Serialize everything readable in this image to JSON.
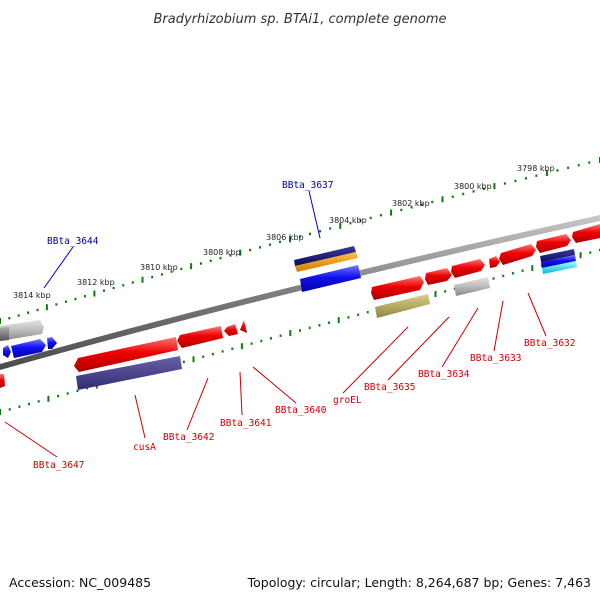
{
  "title": "Bradyrhizobium sp. BTAi1, complete genome",
  "footer": {
    "accession": "Accession: NC_009485",
    "topology": "Topology: circular; Length: 8,264,687 bp; Genes: 7,463"
  },
  "scale": {
    "tick_labels": [
      "3798 kbp",
      "3800 kbp",
      "3802 kbp",
      "3804 kbp",
      "3806 kbp",
      "3808 kbp",
      "3810 kbp",
      "3812 kbp",
      "3814 kbp"
    ]
  },
  "colors": {
    "forward_gene": "#ff0000",
    "reverse_gene": "#0000ff",
    "label_forward": "#cc0000",
    "label_reverse": "#0000aa",
    "tick": "#0a7d0a",
    "backbone": "#8a8a8a"
  },
  "labels_top": [
    "BBta_3637",
    "BBta_3644"
  ],
  "labels_bottom": [
    "BBta_3632",
    "BBta_3633",
    "BBta_3634",
    "BBta_3635",
    "groEL",
    "BBta_3640",
    "BBta_3641",
    "BBta_3642",
    "cusA",
    "BBta_3647"
  ]
}
